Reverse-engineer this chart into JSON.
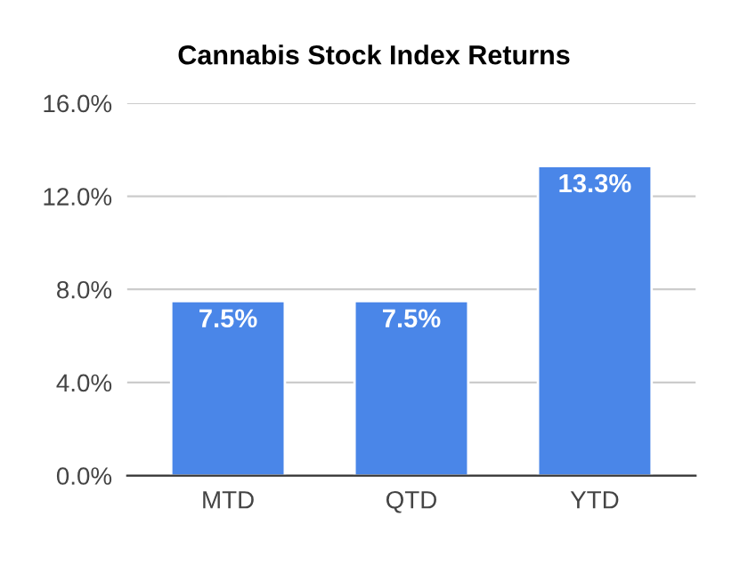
{
  "chart_data": {
    "type": "bar",
    "title": "Cannabis Stock Index Returns",
    "categories": [
      "MTD",
      "QTD",
      "YTD"
    ],
    "values": [
      7.5,
      7.5,
      13.3
    ],
    "value_labels": [
      "7.5%",
      "7.5%",
      "13.3%"
    ],
    "color": "#4a86e8",
    "ylim": [
      0,
      16
    ],
    "yticks": [
      {
        "value": 0,
        "label": "0.0%"
      },
      {
        "value": 4,
        "label": "4.0%"
      },
      {
        "value": 8,
        "label": "8.0%"
      },
      {
        "value": 12,
        "label": "12.0%"
      },
      {
        "value": 16,
        "label": "16.0%"
      }
    ],
    "grid": "y"
  }
}
